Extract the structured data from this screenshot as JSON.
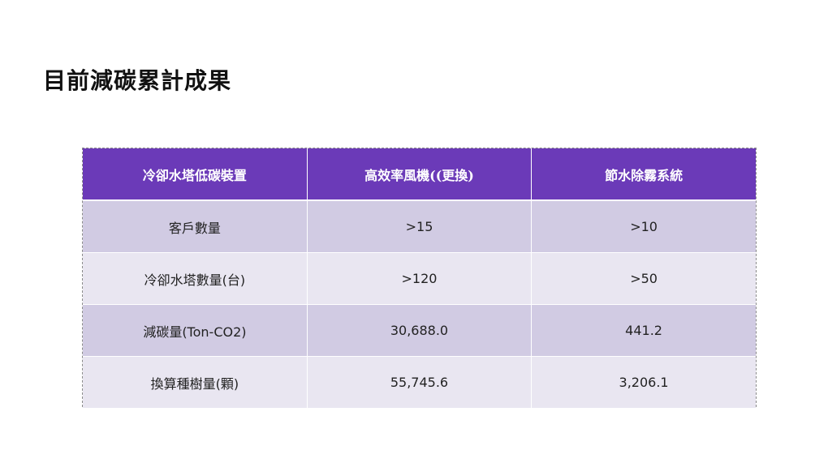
{
  "title": "目前減碳累計成果",
  "table": {
    "headers": [
      "冷卻水塔低碳裝置",
      "高效率風機((更換)",
      "節水除霧系統"
    ],
    "rows": [
      [
        "客戶數量",
        ">15",
        ">10"
      ],
      [
        "冷卻水塔數量(台)",
        ">120",
        ">50"
      ],
      [
        "減碳量(Ton-CO2)",
        "30,688.0",
        "441.2"
      ],
      [
        "換算種樹量(顆)",
        "55,745.6",
        "3,206.1"
      ]
    ]
  },
  "colors": {
    "header_bg": "#6b3ab8",
    "row_odd_bg": "#d1cbe3",
    "row_even_bg": "#e9e6f1"
  }
}
